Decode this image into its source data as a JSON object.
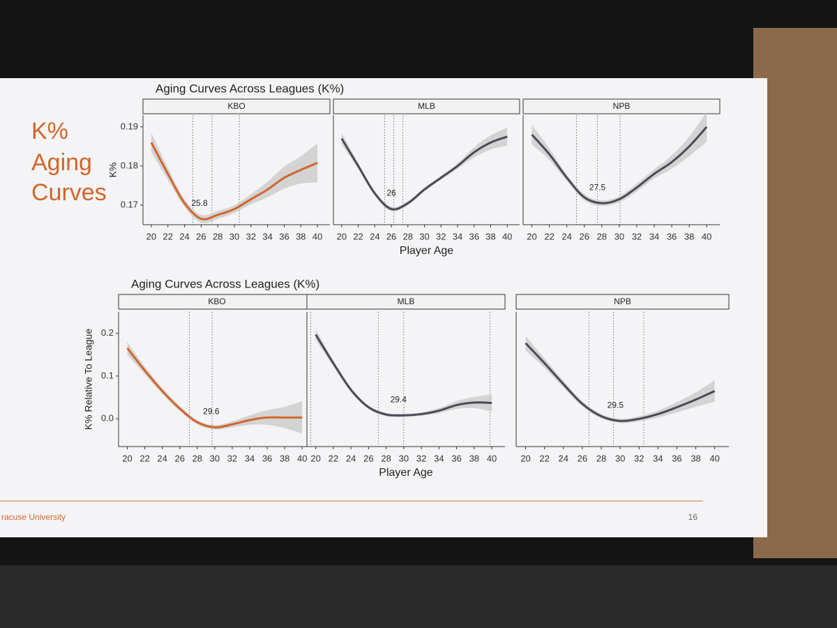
{
  "slide": {
    "title_lines": [
      "K%",
      "Aging",
      "Curves"
    ],
    "footer": "racuse University",
    "page": "16"
  },
  "chart_data": [
    {
      "type": "line",
      "title": "Aging Curves Across Leagues (K%)",
      "panel": "KBO",
      "y_label": "K%",
      "color": "#d2652a",
      "x": [
        20,
        22,
        24,
        26,
        28,
        30,
        32,
        34,
        36,
        38,
        40
      ],
      "values": [
        0.186,
        0.178,
        0.1705,
        0.1665,
        0.1675,
        0.169,
        0.1715,
        0.174,
        0.177,
        0.179,
        0.1808
      ],
      "lower": [
        0.1835,
        0.1765,
        0.1695,
        0.1655,
        0.1665,
        0.168,
        0.1702,
        0.172,
        0.1742,
        0.1755,
        0.1758
      ],
      "upper": [
        0.1885,
        0.1795,
        0.1715,
        0.1675,
        0.1685,
        0.17,
        0.1728,
        0.176,
        0.1798,
        0.1825,
        0.1858
      ],
      "xlim": [
        19,
        41.5
      ],
      "xticks": [
        20,
        22,
        24,
        26,
        28,
        30,
        32,
        34,
        36,
        38,
        40
      ],
      "ylim": [
        0.165,
        0.193
      ],
      "yticks": [
        0.17,
        0.18,
        0.19
      ],
      "vlines": [
        25,
        27.3,
        30.6
      ],
      "peak": 25.8
    },
    {
      "type": "line",
      "panel": "MLB",
      "x_label": "Player Age",
      "color": "#4a4a55",
      "x": [
        20,
        22,
        24,
        26,
        28,
        30,
        32,
        34,
        36,
        38,
        40
      ],
      "values": [
        0.187,
        0.18,
        0.173,
        0.169,
        0.1705,
        0.174,
        0.177,
        0.18,
        0.1835,
        0.186,
        0.1875
      ],
      "lower": [
        0.1855,
        0.1792,
        0.1724,
        0.1684,
        0.17,
        0.1735,
        0.1765,
        0.1793,
        0.1822,
        0.1842,
        0.1852
      ],
      "upper": [
        0.1885,
        0.1808,
        0.1736,
        0.1696,
        0.171,
        0.1745,
        0.1775,
        0.1807,
        0.1848,
        0.1878,
        0.1898
      ],
      "xlim": [
        19,
        41.5
      ],
      "xticks": [
        20,
        22,
        24,
        26,
        28,
        30,
        32,
        34,
        36,
        38,
        40
      ],
      "ylim": [
        0.165,
        0.193
      ],
      "vlines": [
        25.2,
        26.3,
        27.4
      ],
      "peak": 26
    },
    {
      "type": "line",
      "panel": "NPB",
      "color": "#4a4a55",
      "x": [
        20,
        22,
        24,
        26,
        28,
        30,
        32,
        34,
        36,
        38,
        40
      ],
      "values": [
        0.188,
        0.183,
        0.177,
        0.172,
        0.1705,
        0.1715,
        0.1745,
        0.178,
        0.181,
        0.185,
        0.19
      ],
      "lower": [
        0.1855,
        0.1815,
        0.1762,
        0.1712,
        0.1698,
        0.1707,
        0.1735,
        0.1768,
        0.1793,
        0.1825,
        0.1862
      ],
      "upper": [
        0.1905,
        0.1845,
        0.1778,
        0.1728,
        0.1712,
        0.1723,
        0.1755,
        0.1792,
        0.1827,
        0.1875,
        0.1938
      ],
      "xlim": [
        19,
        41.5
      ],
      "xticks": [
        20,
        22,
        24,
        26,
        28,
        30,
        32,
        34,
        36,
        38,
        40
      ],
      "ylim": [
        0.165,
        0.193
      ],
      "vlines": [
        25.1,
        27.5,
        30.1
      ],
      "peak": 27.5
    },
    {
      "type": "line",
      "title": "Aging Curves Across Leagues (K%)",
      "panel": "KBO",
      "y_label": "K% Relative To League",
      "color": "#d2652a",
      "x": [
        20,
        22,
        24,
        26,
        28,
        30,
        32,
        34,
        36,
        38,
        40
      ],
      "values": [
        0.165,
        0.113,
        0.065,
        0.024,
        -0.008,
        -0.02,
        -0.013,
        -0.003,
        0.003,
        0.003,
        0.003
      ],
      "lower": [
        0.15,
        0.104,
        0.058,
        0.018,
        -0.013,
        -0.025,
        -0.02,
        -0.014,
        -0.014,
        -0.022,
        -0.035
      ],
      "upper": [
        0.18,
        0.122,
        0.072,
        0.03,
        -0.003,
        -0.015,
        -0.006,
        0.008,
        0.02,
        0.028,
        0.041
      ],
      "xlim": [
        19,
        41.5
      ],
      "xticks": [
        20,
        22,
        24,
        26,
        28,
        30,
        32,
        34,
        36,
        38,
        40
      ],
      "ylim": [
        -0.065,
        0.25
      ],
      "yticks": [
        {
          "value": 0,
          "label": "0.0"
        },
        0.1,
        0.2
      ],
      "vlines": [
        27.1,
        29.7,
        41
      ],
      "peak": 29.6
    },
    {
      "type": "line",
      "panel": "MLB",
      "x_label": "Player Age",
      "color": "#4a4a55",
      "x": [
        20,
        22,
        24,
        26,
        28,
        30,
        32,
        34,
        36,
        38,
        40
      ],
      "values": [
        0.197,
        0.13,
        0.068,
        0.027,
        0.01,
        0.008,
        0.011,
        0.019,
        0.032,
        0.038,
        0.037
      ],
      "lower": [
        0.185,
        0.123,
        0.063,
        0.023,
        0.006,
        0.004,
        0.007,
        0.013,
        0.023,
        0.025,
        0.017
      ],
      "upper": [
        0.209,
        0.137,
        0.073,
        0.031,
        0.014,
        0.012,
        0.015,
        0.025,
        0.041,
        0.051,
        0.057
      ],
      "xlim": [
        19,
        41.5
      ],
      "xticks": [
        20,
        22,
        24,
        26,
        28,
        30,
        32,
        34,
        36,
        38,
        40
      ],
      "ylim": [
        -0.065,
        0.25
      ],
      "vlines": [
        27.1,
        30,
        39.8
      ],
      "peak": 29.4
    },
    {
      "type": "line",
      "panel": "NPB",
      "color": "#4a4a55",
      "x": [
        20,
        22,
        24,
        26,
        28,
        30,
        32,
        34,
        36,
        38,
        40
      ],
      "values": [
        0.177,
        0.13,
        0.081,
        0.035,
        0.006,
        -0.005,
        0,
        0.011,
        0.027,
        0.045,
        0.065
      ],
      "lower": [
        0.16,
        0.119,
        0.073,
        0.029,
        0.001,
        -0.01,
        -0.006,
        0.003,
        0.015,
        0.028,
        0.04
      ],
      "upper": [
        0.194,
        0.141,
        0.089,
        0.041,
        0.011,
        0,
        0.006,
        0.019,
        0.039,
        0.062,
        0.09
      ],
      "xlim": [
        19,
        41.5
      ],
      "xticks": [
        20,
        22,
        24,
        26,
        28,
        30,
        32,
        34,
        36,
        38,
        40
      ],
      "ylim": [
        -0.065,
        0.25
      ],
      "vlines": [
        26.7,
        29.3,
        32.5
      ],
      "peak": 29.5
    }
  ]
}
